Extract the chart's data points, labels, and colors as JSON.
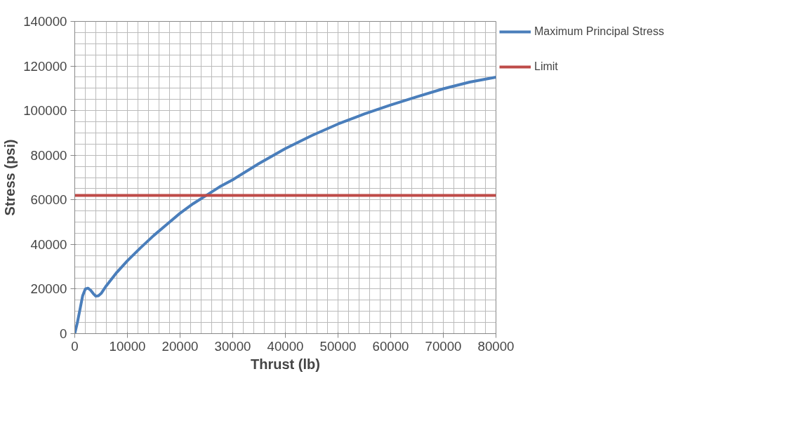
{
  "chart_data": {
    "type": "line",
    "xlabel": "Thrust (lb)",
    "ylabel": "Stress (psi)",
    "xlim": [
      0,
      80000
    ],
    "ylim": [
      0,
      140000
    ],
    "xticks": [
      0,
      10000,
      20000,
      30000,
      40000,
      50000,
      60000,
      70000,
      80000
    ],
    "yticks": [
      0,
      20000,
      40000,
      60000,
      80000,
      100000,
      120000,
      140000
    ],
    "grid": true,
    "legend": "right",
    "line_style": "solid",
    "marker": "none",
    "series": [
      {
        "name": "Maximum Principal Stress",
        "color": "#4a7ebb",
        "x": [
          0,
          500,
          1000,
          1500,
          2000,
          2500,
          3000,
          3500,
          4000,
          4500,
          5000,
          6000,
          8000,
          10000,
          12500,
          15000,
          17500,
          20000,
          22500,
          25000,
          27500,
          30000,
          35000,
          40000,
          45000,
          50000,
          55000,
          60000,
          65000,
          70000,
          75000,
          80000
        ],
        "values": [
          0,
          5000,
          11000,
          17000,
          20000,
          20400,
          19500,
          18000,
          16800,
          17000,
          18000,
          21500,
          27500,
          32700,
          38500,
          44000,
          49000,
          54000,
          58300,
          62000,
          65800,
          69000,
          76300,
          83000,
          88800,
          94000,
          98500,
          102500,
          106200,
          109800,
          112800,
          115000
        ]
      },
      {
        "name": "Limit",
        "color": "#be4b48",
        "x": [
          0,
          80000
        ],
        "values": [
          62000,
          62000
        ]
      }
    ]
  }
}
